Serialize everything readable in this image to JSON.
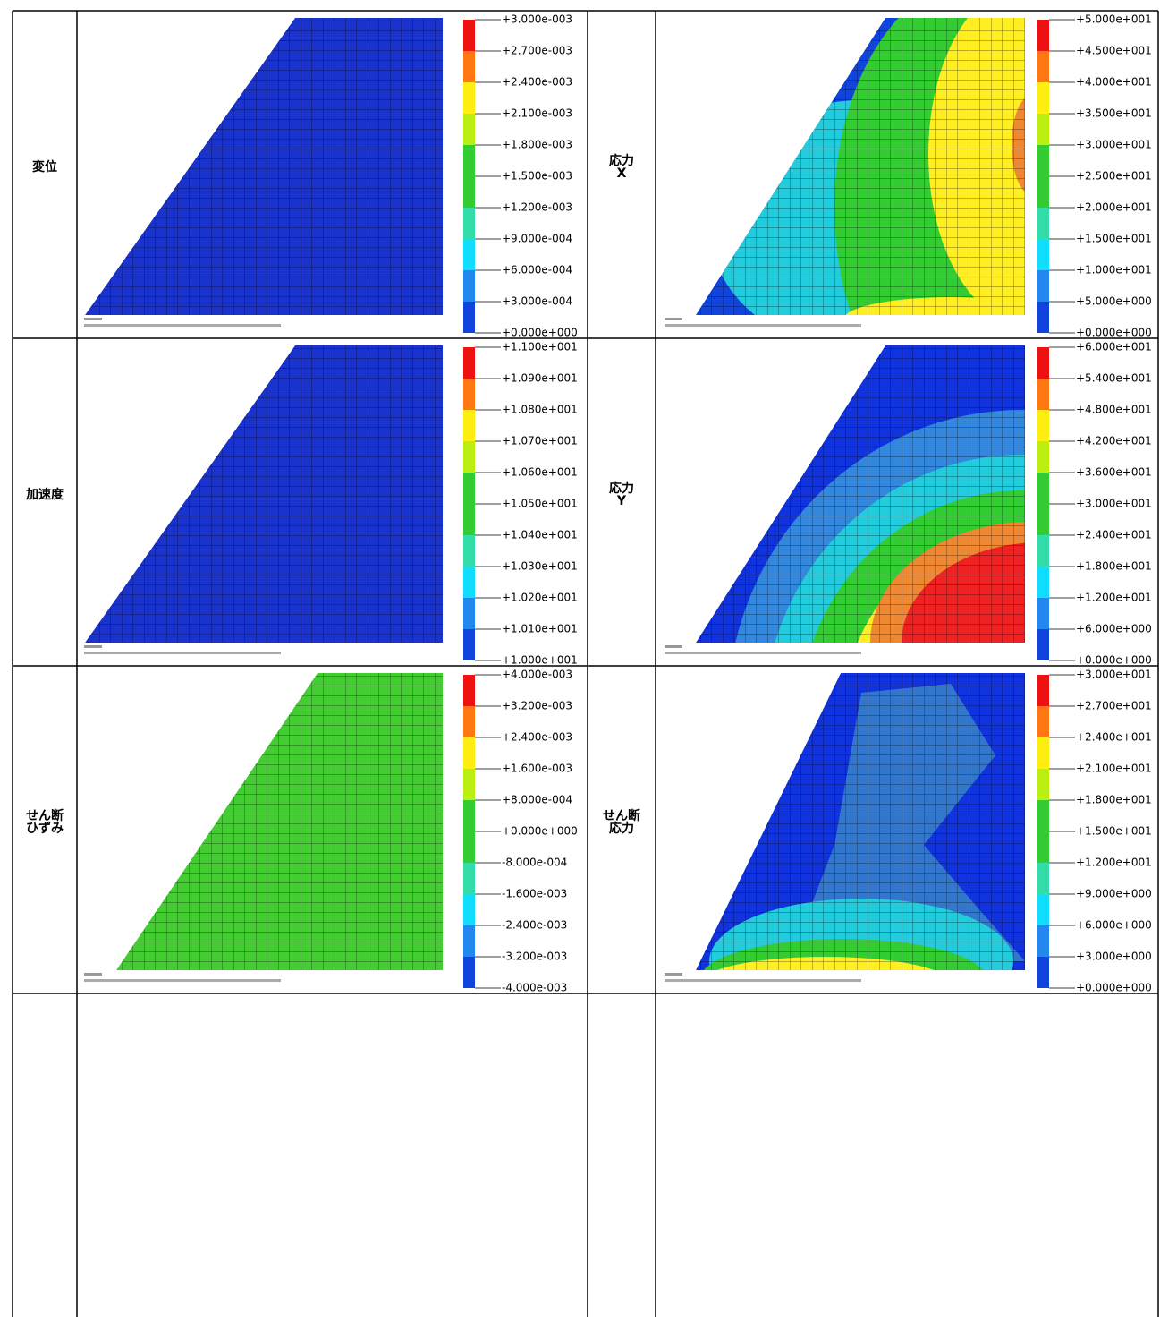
{
  "rows": [
    {
      "left": {
        "label": [
          "変位"
        ],
        "legend": [
          "+3.000e-003",
          "+2.700e-003",
          "+2.400e-003",
          "+2.100e-003",
          "+1.800e-003",
          "+1.500e-003",
          "+1.200e-003",
          "+9.000e-004",
          "+6.000e-004",
          "+3.000e-004",
          "+0.000e+000"
        ]
      },
      "right": {
        "label": [
          "応力",
          "X"
        ],
        "legend": [
          "+5.000e+001",
          "+4.500e+001",
          "+4.000e+001",
          "+3.500e+001",
          "+3.000e+001",
          "+2.500e+001",
          "+2.000e+001",
          "+1.500e+001",
          "+1.000e+001",
          "+5.000e+000",
          "+0.000e+000"
        ]
      }
    },
    {
      "left": {
        "label": [
          "加速度"
        ],
        "legend": [
          "+1.100e+001",
          "+1.090e+001",
          "+1.080e+001",
          "+1.070e+001",
          "+1.060e+001",
          "+1.050e+001",
          "+1.040e+001",
          "+1.030e+001",
          "+1.020e+001",
          "+1.010e+001",
          "+1.000e+001"
        ]
      },
      "right": {
        "label": [
          "応力",
          "Y"
        ],
        "legend": [
          "+6.000e+001",
          "+5.400e+001",
          "+4.800e+001",
          "+4.200e+001",
          "+3.600e+001",
          "+3.000e+001",
          "+2.400e+001",
          "+1.800e+001",
          "+1.200e+001",
          "+6.000e+000",
          "+0.000e+000"
        ]
      }
    },
    {
      "left": {
        "label": [
          "せん断",
          "ひずみ"
        ],
        "legend": [
          "+4.000e-003",
          "+3.200e-003",
          "+2.400e-003",
          "+1.600e-003",
          "+8.000e-004",
          "+0.000e+000",
          "-8.000e-004",
          "-1.600e-003",
          "-2.400e-003",
          "-3.200e-003",
          "-4.000e-003"
        ]
      },
      "right": {
        "label": [
          "せん断",
          "応力"
        ],
        "legend": [
          "+3.000e+001",
          "+2.700e+001",
          "+2.400e+001",
          "+2.100e+001",
          "+1.800e+001",
          "+1.500e+001",
          "+1.200e+001",
          "+9.000e+000",
          "+6.000e+000",
          "+3.000e+000",
          "+0.000e+000"
        ]
      }
    }
  ]
}
